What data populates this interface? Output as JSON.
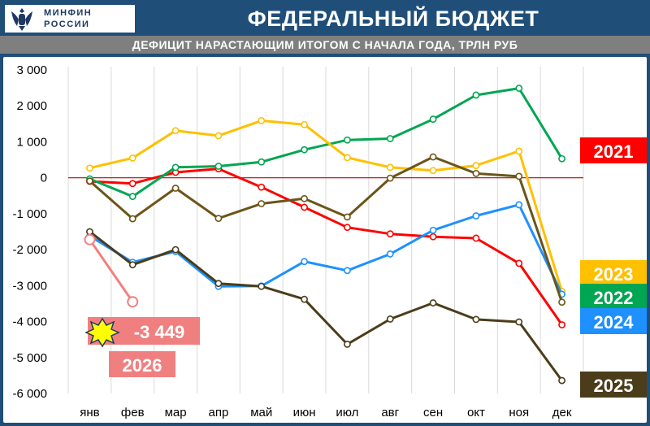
{
  "header": {
    "logo_line1": "МИНФИН",
    "logo_line2": "РОССИИ",
    "title": "ФЕДЕРАЛЬНЫЙ БЮДЖЕТ",
    "subtitle": "ДЕФИЦИТ НАРАСТАЮЩИМ ИТОГОМ С НАЧАЛА ГОДА, ТРЛН РУБ"
  },
  "chart_data": {
    "type": "line",
    "title": "ДЕФИЦИТ НАРАСТАЮЩИМ ИТОГОМ С НАЧАЛА ГОДА, ТРЛН РУБ",
    "xlabel": "",
    "ylabel": "",
    "categories": [
      "янв",
      "фев",
      "мар",
      "апр",
      "май",
      "июн",
      "июл",
      "авг",
      "сен",
      "окт",
      "ноя",
      "дек"
    ],
    "ylim": [
      -6000,
      3000
    ],
    "yticks": [
      3000,
      2000,
      1000,
      0,
      -1000,
      -2000,
      -3000,
      -4000,
      -5000,
      -6000
    ],
    "ytick_labels": [
      "3 000",
      "2 000",
      "1 000",
      "0",
      "-1 000",
      "-2 000",
      "-3 000",
      "-4 000",
      "-5 000",
      "-6 000"
    ],
    "grid": "vertical",
    "series": [
      {
        "name": "2021",
        "color": "#ff0000",
        "values": [
          -100,
          -160,
          150,
          250,
          -260,
          -820,
          -1380,
          -1560,
          -1640,
          -1680,
          -2380,
          -4090
        ]
      },
      {
        "name": "2022",
        "color": "#00a651",
        "values": [
          -30,
          -520,
          290,
          320,
          440,
          780,
          1050,
          1090,
          1630,
          2300,
          2490,
          530
        ]
      },
      {
        "name": "2023",
        "color": "#ffc000",
        "values": [
          270,
          550,
          1310,
          1170,
          1590,
          1480,
          560,
          290,
          200,
          340,
          740,
          -3160
        ]
      },
      {
        "name": "2024",
        "color": "#1e90ff",
        "values": [
          -1620,
          -2350,
          -2050,
          -3020,
          -3010,
          -2330,
          -2580,
          -2120,
          -1460,
          -1060,
          -750,
          -3240
        ]
      },
      {
        "name": "2025",
        "color": "#4b3d1a",
        "values": [
          -1500,
          -2420,
          -2000,
          -2940,
          -3020,
          -3380,
          -4630,
          -3930,
          -3480,
          -3940,
          -4010,
          -5640
        ]
      },
      {
        "name": "2025 (тренд)",
        "color": "#6b5518",
        "values": [
          -90,
          -1140,
          -290,
          -1130,
          -720,
          -580,
          -1090,
          -10,
          580,
          120,
          40,
          -3460
        ]
      },
      {
        "name": "2026",
        "color": "#f08080",
        "values": [
          -1720,
          -3449,
          null,
          null,
          null,
          null,
          null,
          null,
          null,
          null,
          null,
          null
        ]
      }
    ],
    "labels": [
      {
        "text": "2021",
        "bg": "#ff0000",
        "fg": "#ffffff"
      },
      {
        "text": "2023",
        "bg": "#ffc000",
        "fg": "#ffffff"
      },
      {
        "text": "2022",
        "bg": "#00a651",
        "fg": "#ffffff"
      },
      {
        "text": "2024",
        "bg": "#1e90ff",
        "fg": "#ffffff"
      },
      {
        "text": "2025",
        "bg": "#4b3d1a",
        "fg": "#ffffff"
      }
    ],
    "annotation": {
      "value_text": "-3 449",
      "year_text": "2026",
      "bg": "#f08080"
    }
  }
}
